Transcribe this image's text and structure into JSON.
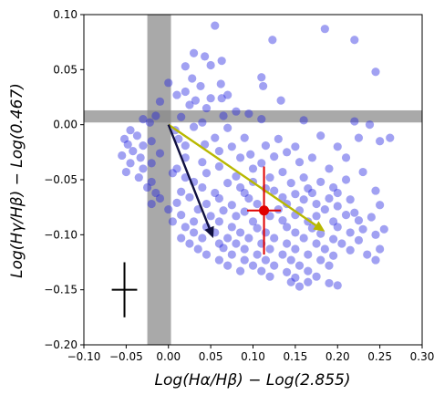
{
  "chart_data": {
    "type": "scatter",
    "title": "",
    "xlabel": "Log(Hα/Hβ) − Log(2.855)",
    "ylabel": "Log(Hγ/Hβ) − Log(0.467)",
    "xlim": [
      -0.1,
      0.3
    ],
    "ylim": [
      -0.2,
      0.1
    ],
    "xticks": [
      -0.1,
      -0.05,
      0.0,
      0.05,
      0.1,
      0.15,
      0.2,
      0.25,
      0.3
    ],
    "yticks": [
      -0.2,
      -0.15,
      -0.1,
      -0.05,
      0.0,
      0.05,
      0.1
    ],
    "xtick_labels": [
      "−0.10",
      "−0.05",
      "0.00",
      "0.05",
      "0.10",
      "0.15",
      "0.20",
      "0.25",
      "0.30"
    ],
    "ytick_labels": [
      "−0.20",
      "−0.15",
      "−0.10",
      "−0.05",
      "0.00",
      "0.05",
      "0.10"
    ],
    "grid": false,
    "colors": {
      "points": "#2020e0",
      "band": "#888888",
      "red_marker": "#e00000",
      "dark_arrow": "#101040",
      "yellow_arrow": "#b8b800",
      "error_cross": "#000000"
    },
    "bands": {
      "vertical": [
        -0.025,
        0.003
      ],
      "horizontal": [
        0.002,
        0.013
      ]
    },
    "arrows": [
      {
        "color": "dark",
        "from": [
          0.0,
          0.0
        ],
        "to": [
          0.053,
          -0.103
        ]
      },
      {
        "color": "yellow",
        "from": [
          0.0,
          0.0
        ],
        "to": [
          0.185,
          -0.097
        ]
      }
    ],
    "red_marker": {
      "x": 0.113,
      "y": -0.078,
      "xerr": 0.02,
      "yerr": 0.04
    },
    "error_cross": {
      "x": -0.052,
      "y": -0.15,
      "xerr": 0.015,
      "yerr": 0.025
    },
    "series": [
      {
        "points": [
          [
            0.055,
            0.09
          ],
          [
            0.185,
            0.087
          ],
          [
            0.123,
            0.077
          ],
          [
            0.22,
            0.077
          ],
          [
            0.03,
            0.065
          ],
          [
            0.043,
            0.062
          ],
          [
            0.063,
            0.058
          ],
          [
            0.02,
            0.053
          ],
          [
            0.05,
            0.054
          ],
          [
            0.245,
            0.048
          ],
          [
            0.028,
            0.042
          ],
          [
            0.11,
            0.043
          ],
          [
            0.062,
            0.037
          ],
          [
            0.0,
            0.038
          ],
          [
            0.02,
            0.03
          ],
          [
            0.038,
            0.035
          ],
          [
            0.112,
            0.035
          ],
          [
            0.01,
            0.027
          ],
          [
            0.07,
            0.027
          ],
          [
            0.032,
            0.022
          ],
          [
            0.05,
            0.024
          ],
          [
            0.063,
            0.024
          ],
          [
            -0.01,
            0.021
          ],
          [
            0.025,
            0.018
          ],
          [
            0.045,
            0.015
          ],
          [
            0.08,
            0.012
          ],
          [
            0.133,
            0.022
          ],
          [
            0.065,
            0.008
          ],
          [
            0.095,
            0.01
          ],
          [
            0.015,
            0.007
          ],
          [
            -0.015,
            0.008
          ],
          [
            -0.03,
            0.005
          ],
          [
            -0.022,
            0.002
          ],
          [
            0.04,
            0.002
          ],
          [
            0.11,
            0.005
          ],
          [
            0.16,
            0.004
          ],
          [
            0.22,
            0.003
          ],
          [
            0.238,
            0.0
          ],
          [
            0.03,
            -0.002
          ],
          [
            0.07,
            -0.003
          ],
          [
            0.008,
            -0.005
          ],
          [
            -0.045,
            -0.005
          ],
          [
            -0.037,
            -0.01
          ],
          [
            -0.052,
            -0.013
          ],
          [
            -0.02,
            -0.015
          ],
          [
            0.012,
            -0.013
          ],
          [
            0.055,
            -0.012
          ],
          [
            0.09,
            -0.012
          ],
          [
            0.13,
            -0.013
          ],
          [
            0.18,
            -0.01
          ],
          [
            0.225,
            -0.012
          ],
          [
            0.262,
            -0.012
          ],
          [
            -0.048,
            -0.018
          ],
          [
            -0.03,
            -0.019
          ],
          [
            0.02,
            -0.019
          ],
          [
            0.043,
            -0.018
          ],
          [
            0.075,
            -0.02
          ],
          [
            0.115,
            -0.019
          ],
          [
            0.15,
            -0.02
          ],
          [
            0.2,
            -0.02
          ],
          [
            0.25,
            -0.015
          ],
          [
            -0.042,
            -0.024
          ],
          [
            -0.01,
            -0.026
          ],
          [
            0.06,
            -0.024
          ],
          [
            0.097,
            -0.027
          ],
          [
            0.14,
            -0.025
          ],
          [
            -0.055,
            -0.028
          ],
          [
            -0.033,
            -0.03
          ],
          [
            0.02,
            -0.03
          ],
          [
            0.085,
            -0.03
          ],
          [
            0.125,
            -0.029
          ],
          [
            0.17,
            -0.03
          ],
          [
            0.21,
            -0.03
          ],
          [
            -0.045,
            -0.035
          ],
          [
            -0.02,
            -0.035
          ],
          [
            0.04,
            -0.034
          ],
          [
            0.11,
            -0.035
          ],
          [
            0.155,
            -0.034
          ],
          [
            -0.03,
            -0.04
          ],
          [
            0.01,
            -0.04
          ],
          [
            0.06,
            -0.038
          ],
          [
            0.1,
            -0.04
          ],
          [
            0.19,
            -0.04
          ],
          [
            -0.05,
            -0.043
          ],
          [
            0.005,
            -0.044
          ],
          [
            0.045,
            -0.044
          ],
          [
            0.135,
            -0.043
          ],
          [
            0.23,
            -0.043
          ],
          [
            -0.035,
            -0.048
          ],
          [
            0.02,
            -0.048
          ],
          [
            0.08,
            -0.047
          ],
          [
            0.12,
            -0.048
          ],
          [
            0.16,
            -0.048
          ],
          [
            -0.02,
            -0.052
          ],
          [
            0.03,
            -0.052
          ],
          [
            0.07,
            -0.053
          ],
          [
            0.1,
            -0.052
          ],
          [
            0.145,
            -0.053
          ],
          [
            0.18,
            -0.052
          ],
          [
            0.21,
            -0.05
          ],
          [
            -0.025,
            -0.057
          ],
          [
            0.04,
            -0.057
          ],
          [
            0.085,
            -0.057
          ],
          [
            0.115,
            -0.058
          ],
          [
            0.165,
            -0.058
          ],
          [
            0.195,
            -0.057
          ],
          [
            -0.015,
            -0.062
          ],
          [
            0.015,
            -0.061
          ],
          [
            0.055,
            -0.062
          ],
          [
            0.09,
            -0.062
          ],
          [
            0.125,
            -0.06
          ],
          [
            0.15,
            -0.063
          ],
          [
            0.17,
            -0.062
          ],
          [
            0.2,
            -0.062
          ],
          [
            0.245,
            -0.06
          ],
          [
            -0.01,
            -0.067
          ],
          [
            0.025,
            -0.066
          ],
          [
            0.06,
            -0.067
          ],
          [
            0.095,
            -0.067
          ],
          [
            0.135,
            -0.066
          ],
          [
            0.16,
            -0.068
          ],
          [
            0.19,
            -0.067
          ],
          [
            0.215,
            -0.068
          ],
          [
            -0.02,
            -0.072
          ],
          [
            0.01,
            -0.071
          ],
          [
            0.045,
            -0.072
          ],
          [
            0.075,
            -0.073
          ],
          [
            0.105,
            -0.072
          ],
          [
            0.14,
            -0.072
          ],
          [
            0.175,
            -0.072
          ],
          [
            0.2,
            -0.074
          ],
          [
            0.25,
            -0.073
          ],
          [
            0.0,
            -0.077
          ],
          [
            0.035,
            -0.077
          ],
          [
            0.065,
            -0.078
          ],
          [
            0.09,
            -0.079
          ],
          [
            0.13,
            -0.077
          ],
          [
            0.155,
            -0.078
          ],
          [
            0.185,
            -0.077
          ],
          [
            0.22,
            -0.08
          ],
          [
            0.015,
            -0.082
          ],
          [
            0.05,
            -0.083
          ],
          [
            0.08,
            -0.083
          ],
          [
            0.12,
            -0.083
          ],
          [
            0.15,
            -0.082
          ],
          [
            0.175,
            -0.083
          ],
          [
            0.21,
            -0.082
          ],
          [
            0.24,
            -0.084
          ],
          [
            0.005,
            -0.088
          ],
          [
            0.03,
            -0.088
          ],
          [
            0.06,
            -0.088
          ],
          [
            0.1,
            -0.088
          ],
          [
            0.135,
            -0.087
          ],
          [
            0.165,
            -0.088
          ],
          [
            0.195,
            -0.088
          ],
          [
            0.225,
            -0.087
          ],
          [
            0.02,
            -0.093
          ],
          [
            0.045,
            -0.093
          ],
          [
            0.075,
            -0.093
          ],
          [
            0.105,
            -0.094
          ],
          [
            0.14,
            -0.093
          ],
          [
            0.17,
            -0.094
          ],
          [
            0.2,
            -0.093
          ],
          [
            0.23,
            -0.095
          ],
          [
            0.255,
            -0.095
          ],
          [
            0.03,
            -0.098
          ],
          [
            0.055,
            -0.098
          ],
          [
            0.085,
            -0.098
          ],
          [
            0.115,
            -0.098
          ],
          [
            0.15,
            -0.098
          ],
          [
            0.18,
            -0.099
          ],
          [
            0.215,
            -0.098
          ],
          [
            0.245,
            -0.1
          ],
          [
            0.015,
            -0.103
          ],
          [
            0.04,
            -0.103
          ],
          [
            0.07,
            -0.103
          ],
          [
            0.095,
            -0.103
          ],
          [
            0.125,
            -0.103
          ],
          [
            0.16,
            -0.103
          ],
          [
            0.195,
            -0.104
          ],
          [
            0.225,
            -0.105
          ],
          [
            0.025,
            -0.108
          ],
          [
            0.06,
            -0.108
          ],
          [
            0.08,
            -0.108
          ],
          [
            0.11,
            -0.108
          ],
          [
            0.14,
            -0.108
          ],
          [
            0.175,
            -0.108
          ],
          [
            0.205,
            -0.108
          ],
          [
            0.035,
            -0.113
          ],
          [
            0.065,
            -0.112
          ],
          [
            0.09,
            -0.113
          ],
          [
            0.12,
            -0.113
          ],
          [
            0.15,
            -0.113
          ],
          [
            0.185,
            -0.113
          ],
          [
            0.215,
            -0.114
          ],
          [
            0.25,
            -0.113
          ],
          [
            0.045,
            -0.118
          ],
          [
            0.075,
            -0.118
          ],
          [
            0.105,
            -0.118
          ],
          [
            0.135,
            -0.118
          ],
          [
            0.165,
            -0.118
          ],
          [
            0.195,
            -0.119
          ],
          [
            0.235,
            -0.118
          ],
          [
            0.06,
            -0.123
          ],
          [
            0.09,
            -0.123
          ],
          [
            0.115,
            -0.123
          ],
          [
            0.145,
            -0.123
          ],
          [
            0.18,
            -0.123
          ],
          [
            0.245,
            -0.123
          ],
          [
            0.07,
            -0.128
          ],
          [
            0.1,
            -0.128
          ],
          [
            0.125,
            -0.128
          ],
          [
            0.155,
            -0.128
          ],
          [
            0.19,
            -0.128
          ],
          [
            0.085,
            -0.133
          ],
          [
            0.11,
            -0.133
          ],
          [
            0.14,
            -0.134
          ],
          [
            0.165,
            -0.133
          ],
          [
            0.12,
            -0.138
          ],
          [
            0.15,
            -0.139
          ],
          [
            0.175,
            -0.138
          ],
          [
            0.145,
            -0.143
          ],
          [
            0.165,
            -0.143
          ],
          [
            0.19,
            -0.144
          ],
          [
            0.155,
            -0.147
          ],
          [
            0.2,
            -0.146
          ]
        ]
      }
    ]
  }
}
